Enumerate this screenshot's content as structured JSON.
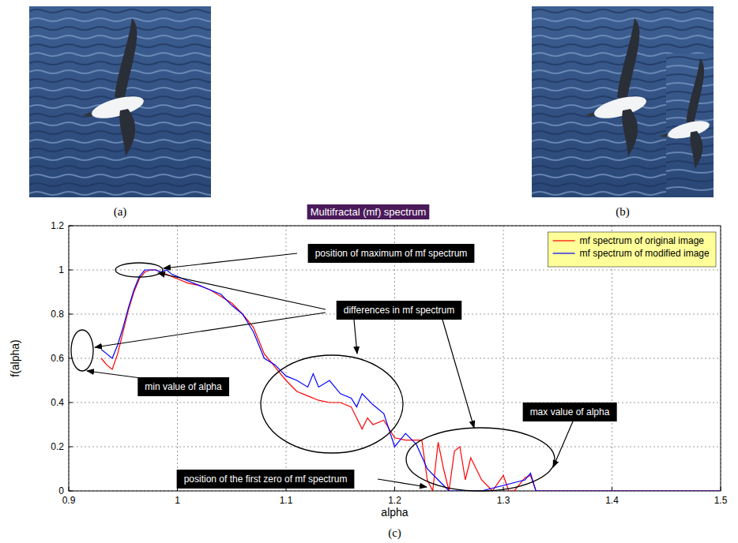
{
  "chart_data": {
    "type": "line",
    "title": "Multifractal (mf) spectrum",
    "x_label": "alpha",
    "y_label": "f(alpha)",
    "xlim": [
      0.9,
      1.5
    ],
    "ylim": [
      0,
      1.2
    ],
    "xticks": [
      0.9,
      1,
      1.1,
      1.2,
      1.3,
      1.4,
      1.5
    ],
    "yticks": [
      0,
      0.2,
      0.4,
      0.6,
      0.8,
      1,
      1.2
    ],
    "grid": true,
    "legend": "upper right",
    "annotations": [
      "position of maximum of mf spectrum",
      "differences in mf spectrum",
      "min value of alpha",
      "max value of alpha",
      "position of the first zero of mf spectrum"
    ],
    "series": [
      {
        "name": "mf spectrum of original image",
        "color": "#ff0000",
        "x": [
          0.93,
          0.935,
          0.94,
          0.945,
          0.95,
          0.955,
          0.96,
          0.965,
          0.97,
          0.975,
          0.98,
          0.985,
          0.99,
          0.995,
          1.0,
          1.01,
          1.02,
          1.03,
          1.04,
          1.05,
          1.06,
          1.07,
          1.08,
          1.09,
          1.1,
          1.11,
          1.12,
          1.13,
          1.14,
          1.15,
          1.16,
          1.17,
          1.175,
          1.18,
          1.19,
          1.2,
          1.21,
          1.22,
          1.225,
          1.23,
          1.235,
          1.24,
          1.245,
          1.25,
          1.255,
          1.26,
          1.265,
          1.27,
          1.28,
          1.29,
          1.3,
          1.305,
          1.31,
          1.32,
          1.325,
          1.33,
          1.34,
          1.5
        ],
        "values": [
          0.6,
          0.57,
          0.55,
          0.62,
          0.72,
          0.82,
          0.9,
          0.96,
          0.99,
          1.0,
          1.0,
          0.99,
          0.98,
          0.97,
          0.96,
          0.94,
          0.93,
          0.91,
          0.88,
          0.85,
          0.8,
          0.74,
          0.62,
          0.56,
          0.5,
          0.45,
          0.43,
          0.41,
          0.4,
          0.4,
          0.38,
          0.28,
          0.33,
          0.3,
          0.32,
          0.24,
          0.23,
          0.23,
          0.23,
          0.05,
          0.0,
          0.22,
          0.1,
          0.0,
          0.18,
          0.2,
          0.05,
          0.15,
          0.05,
          0.0,
          0.07,
          0.0,
          0.0,
          0.06,
          0.07,
          0.0,
          0.0,
          0.0
        ]
      },
      {
        "name": "mf spectrum of modified image",
        "color": "#0000ff",
        "x": [
          0.93,
          0.935,
          0.94,
          0.945,
          0.95,
          0.955,
          0.96,
          0.965,
          0.97,
          0.975,
          0.98,
          0.985,
          0.99,
          0.995,
          1.0,
          1.01,
          1.02,
          1.03,
          1.04,
          1.05,
          1.06,
          1.07,
          1.08,
          1.09,
          1.1,
          1.11,
          1.12,
          1.125,
          1.13,
          1.14,
          1.15,
          1.16,
          1.165,
          1.17,
          1.18,
          1.19,
          1.2,
          1.21,
          1.22,
          1.23,
          1.24,
          1.25,
          1.28,
          1.32,
          1.325,
          1.33,
          1.5
        ],
        "values": [
          0.64,
          0.62,
          0.6,
          0.66,
          0.74,
          0.83,
          0.91,
          0.97,
          1.0,
          1.0,
          1.0,
          0.99,
          1.0,
          0.98,
          0.97,
          0.95,
          0.93,
          0.91,
          0.89,
          0.84,
          0.8,
          0.72,
          0.6,
          0.57,
          0.52,
          0.5,
          0.47,
          0.53,
          0.47,
          0.5,
          0.44,
          0.42,
          0.38,
          0.44,
          0.39,
          0.35,
          0.2,
          0.26,
          0.21,
          0.1,
          0.05,
          0.0,
          0.0,
          0.05,
          0.08,
          0.0,
          0.0
        ]
      }
    ]
  },
  "figure": {
    "panel_labels": [
      "(a)",
      "(b)",
      "(c)"
    ]
  }
}
